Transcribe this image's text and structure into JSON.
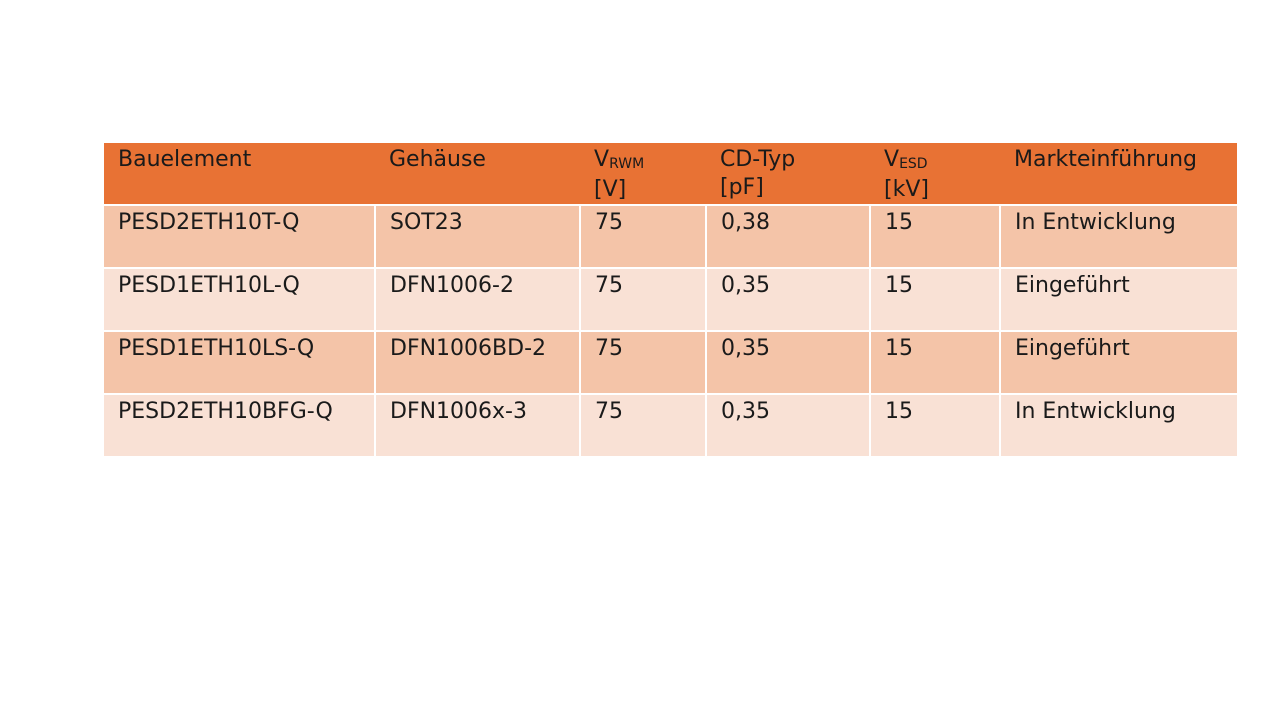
{
  "table": {
    "headers": [
      {
        "main": "Bauelement",
        "sub": "",
        "unit": ""
      },
      {
        "main": "Gehäuse",
        "sub": "",
        "unit": ""
      },
      {
        "main": "V",
        "sub": "RWM",
        "unit": "[V]"
      },
      {
        "main": "CD-Typ",
        "sub": "",
        "unit": "[pF]"
      },
      {
        "main": "V",
        "sub": "ESD",
        "unit": "[kV]"
      },
      {
        "main": "Markteinführung",
        "sub": "",
        "unit": ""
      }
    ],
    "rows": [
      [
        "PESD2ETH10T-Q",
        "SOT23",
        "75",
        "0,38",
        "15",
        "In Entwicklung"
      ],
      [
        "PESD1ETH10L-Q",
        "DFN1006-2",
        "75",
        "0,35",
        "15",
        "Eingeführt"
      ],
      [
        "PESD1ETH10LS-Q",
        "DFN1006BD-2",
        "75",
        "0,35",
        "15",
        "Eingeführt"
      ],
      [
        "PESD2ETH10BFG-Q",
        "DFN1006x-3",
        "75",
        "0,35",
        "15",
        "In Entwicklung"
      ]
    ]
  },
  "colors": {
    "header": "#E87234",
    "row_odd": "#F4C4A8",
    "row_even": "#F9E1D5"
  }
}
